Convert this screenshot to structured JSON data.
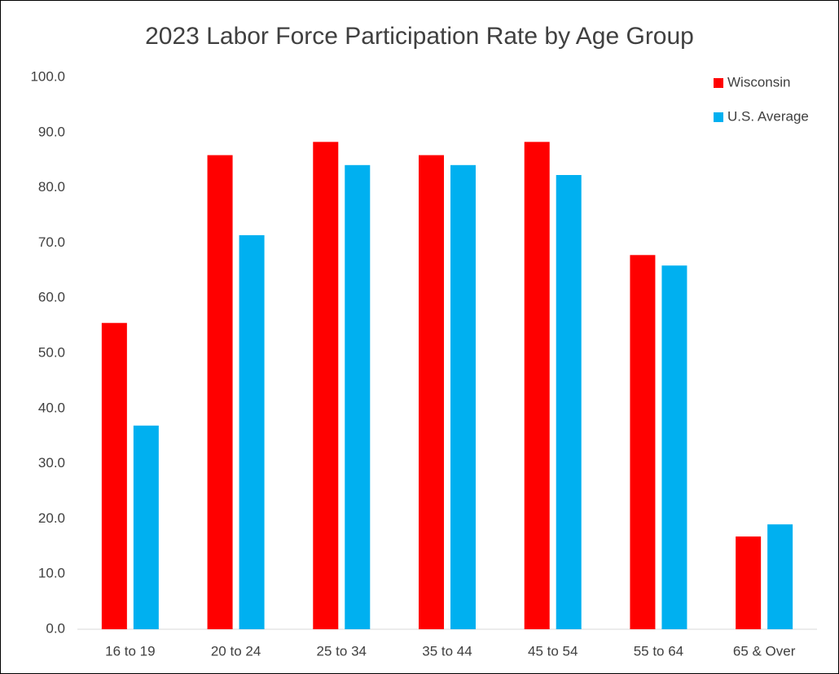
{
  "chart_data": {
    "type": "bar",
    "title": "2023 Labor Force Participation Rate by Age Group",
    "categories": [
      "16 to 19",
      "20 to 24",
      "25 to 34",
      "35 to 44",
      "45 to 54",
      "55 to 64",
      "65 & Over"
    ],
    "series": [
      {
        "name": "Wisconsin",
        "color": "#ff0000",
        "values": [
          55.5,
          85.9,
          88.3,
          85.9,
          88.3,
          67.8,
          16.8
        ]
      },
      {
        "name": "U.S. Average",
        "color": "#00b0f0",
        "values": [
          36.9,
          71.4,
          84.1,
          84.1,
          82.3,
          65.9,
          19.0
        ]
      }
    ],
    "ylim": [
      0,
      100
    ],
    "yticks": [
      {
        "value": 0,
        "label": "0.0"
      },
      {
        "value": 10,
        "label": "10.0"
      },
      {
        "value": 20,
        "label": "20.0"
      },
      {
        "value": 30,
        "label": "30.0"
      },
      {
        "value": 40,
        "label": "40.0"
      },
      {
        "value": 50,
        "label": "50.0"
      },
      {
        "value": 60,
        "label": "60.0"
      },
      {
        "value": 70,
        "label": "70.0"
      },
      {
        "value": 80,
        "label": "80.0"
      },
      {
        "value": 90,
        "label": "90.0"
      },
      {
        "value": 100,
        "label": "100.0"
      }
    ],
    "grid": false,
    "legend": "top-right"
  }
}
